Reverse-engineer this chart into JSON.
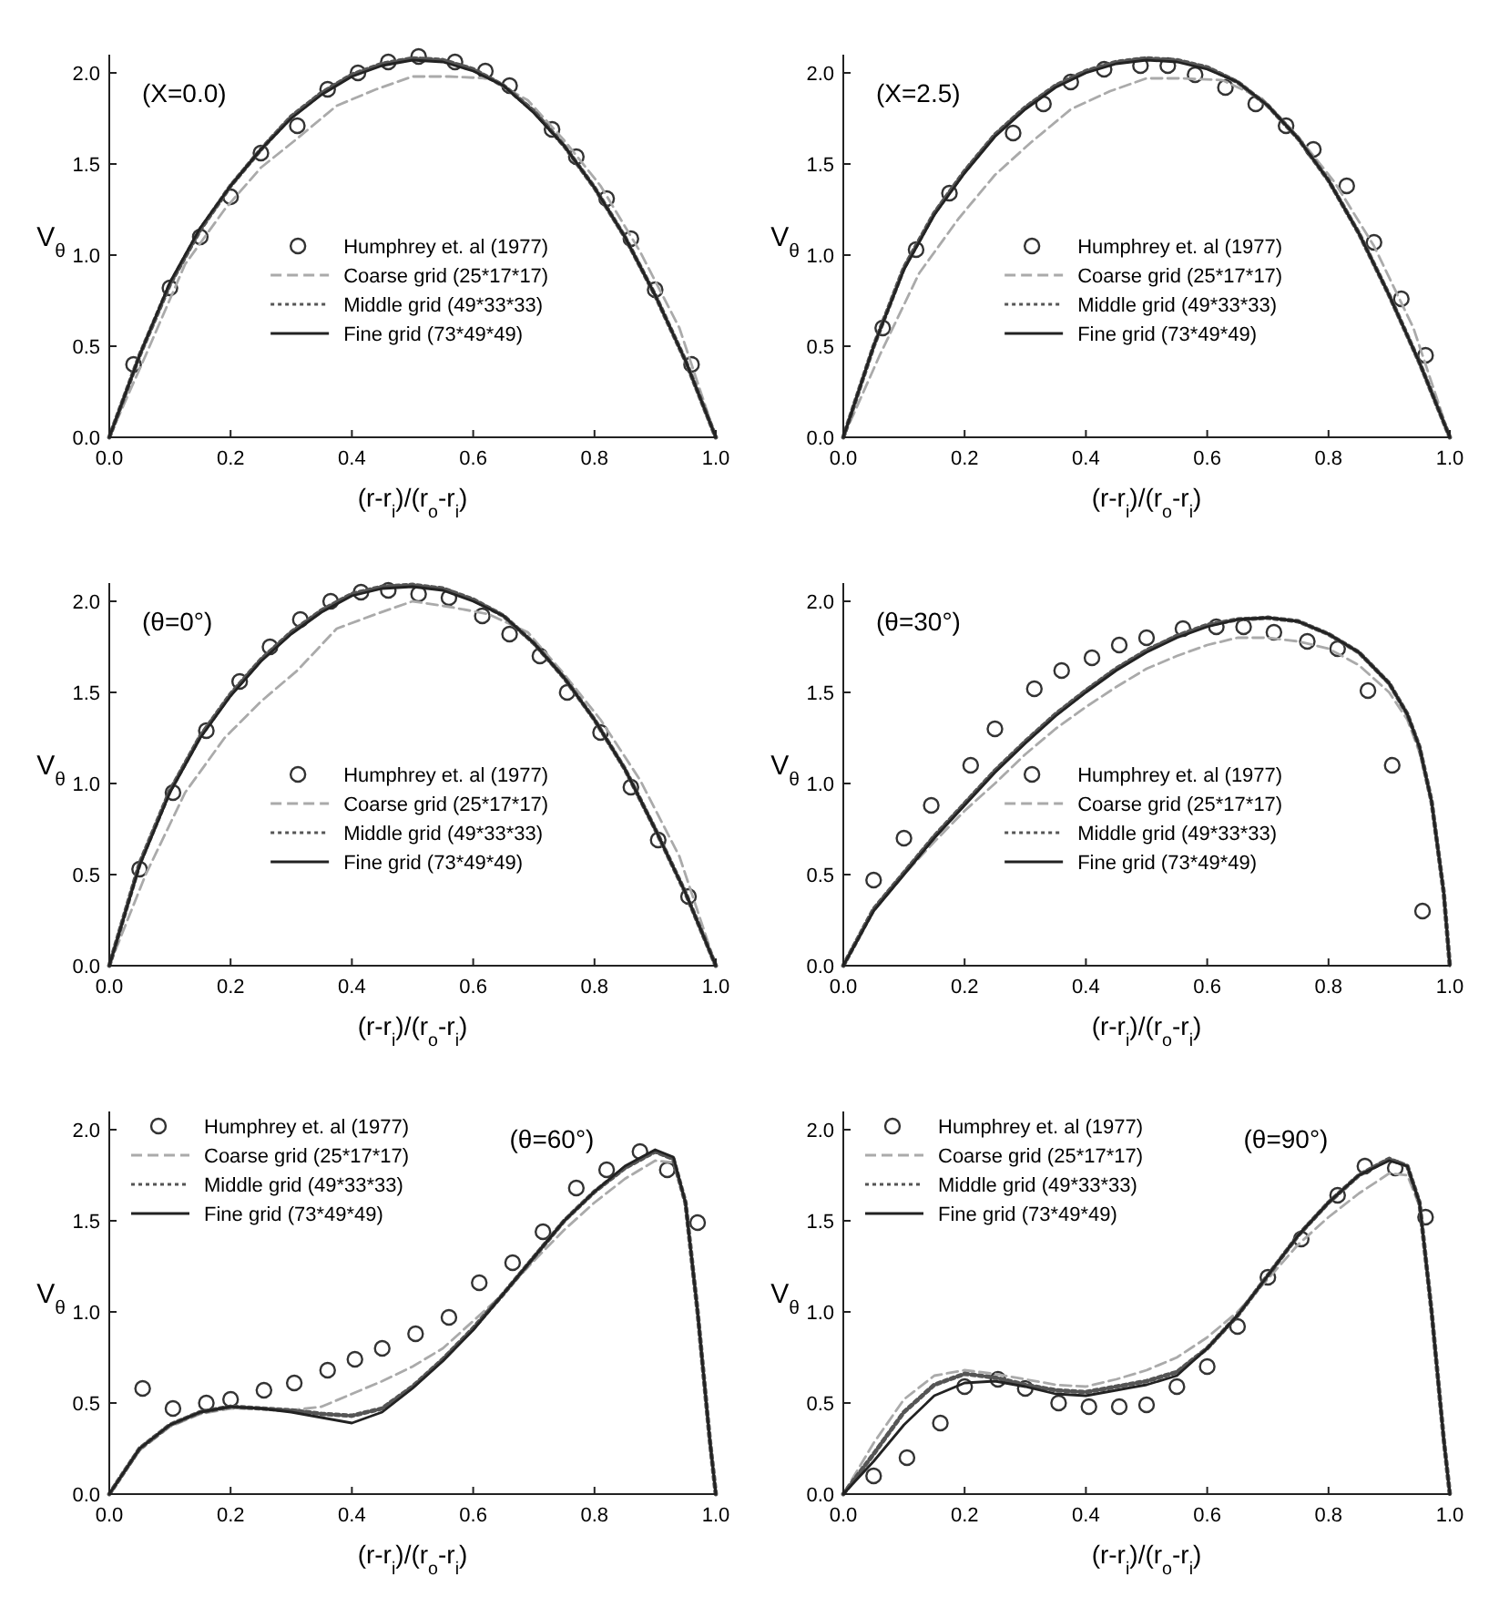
{
  "chart_data": [
    {
      "type": "line",
      "annotations": [
        "(X=0.0)"
      ],
      "xlabel": "(r-r$_{i}$)/(r$_{o}$-r$_{i}$)",
      "ylabel": "V$_{θ}$",
      "xlim": [
        0,
        1
      ],
      "ylim": [
        0,
        2.1
      ],
      "xticks": [
        {
          "value": 0,
          "label": "0.0"
        },
        {
          "value": 0.2,
          "label": "0.2"
        },
        {
          "value": 0.4,
          "label": "0.4"
        },
        {
          "value": 0.6,
          "label": "0.6"
        },
        {
          "value": 0.8,
          "label": "0.8"
        },
        {
          "value": 1,
          "label": "1.0"
        }
      ],
      "yticks": [
        {
          "value": 0,
          "label": "0.0"
        },
        {
          "value": 0.5,
          "label": "0.5"
        },
        {
          "value": 1,
          "label": "1.0"
        },
        {
          "value": 1.5,
          "label": "1.5"
        },
        {
          "value": 2,
          "label": "2.0"
        }
      ],
      "legend": "bottom",
      "series": [
        {
          "name": "Humphrey et. al (1977)",
          "type": "scatter",
          "marker": "circle",
          "color": "#333333",
          "x": [
            0.04,
            0.1,
            0.15,
            0.2,
            0.25,
            0.31,
            0.36,
            0.41,
            0.46,
            0.51,
            0.57,
            0.62,
            0.66,
            0.73,
            0.77,
            0.82,
            0.86,
            0.9,
            0.96
          ],
          "values": [
            0.4,
            0.82,
            1.1,
            1.32,
            1.56,
            1.71,
            1.91,
            2.0,
            2.06,
            2.09,
            2.06,
            2.01,
            1.93,
            1.69,
            1.54,
            1.31,
            1.09,
            0.81,
            0.4
          ]
        },
        {
          "name": "Coarse grid (25*17*17)",
          "line_style": "dashed",
          "color": "#aaaaaa",
          "x": [
            0,
            0.06,
            0.125,
            0.19,
            0.25,
            0.31,
            0.375,
            0.44,
            0.5,
            0.56,
            0.625,
            0.69,
            0.75,
            0.81,
            0.875,
            0.94,
            1.0
          ],
          "values": [
            0,
            0.45,
            0.95,
            1.25,
            1.48,
            1.64,
            1.82,
            1.91,
            1.98,
            1.98,
            1.97,
            1.85,
            1.63,
            1.38,
            1.02,
            0.6,
            0
          ]
        },
        {
          "name": "Middle grid (49*33*33)",
          "line_style": "dotted",
          "color": "#555555",
          "x": [
            0,
            0.05,
            0.1,
            0.15,
            0.2,
            0.25,
            0.3,
            0.35,
            0.4,
            0.45,
            0.5,
            0.55,
            0.6,
            0.65,
            0.7,
            0.75,
            0.8,
            0.85,
            0.9,
            0.95,
            1.0
          ],
          "values": [
            0,
            0.45,
            0.84,
            1.14,
            1.38,
            1.58,
            1.76,
            1.89,
            1.99,
            2.05,
            2.08,
            2.07,
            2.02,
            1.93,
            1.79,
            1.6,
            1.37,
            1.1,
            0.78,
            0.42,
            0
          ]
        },
        {
          "name": "Fine grid (73*49*49)",
          "line_style": "solid",
          "color": "#222222",
          "x": [
            0,
            0.05,
            0.1,
            0.15,
            0.2,
            0.25,
            0.3,
            0.35,
            0.4,
            0.45,
            0.5,
            0.55,
            0.6,
            0.65,
            0.7,
            0.75,
            0.8,
            0.85,
            0.9,
            0.95,
            1.0
          ],
          "values": [
            0,
            0.45,
            0.85,
            1.15,
            1.38,
            1.58,
            1.75,
            1.88,
            1.98,
            2.04,
            2.07,
            2.06,
            2.01,
            1.93,
            1.78,
            1.6,
            1.37,
            1.1,
            0.78,
            0.42,
            0
          ]
        }
      ]
    },
    {
      "type": "line",
      "annotations": [
        "(X=2.5)"
      ],
      "xlabel": "(r-r$_{i}$)/(r$_{o}$-r$_{i}$)",
      "ylabel": "V$_{θ}$",
      "xlim": [
        0,
        1
      ],
      "ylim": [
        0,
        2.1
      ],
      "xticks": [
        {
          "value": 0,
          "label": "0.0"
        },
        {
          "value": 0.2,
          "label": "0.2"
        },
        {
          "value": 0.4,
          "label": "0.4"
        },
        {
          "value": 0.6,
          "label": "0.6"
        },
        {
          "value": 0.8,
          "label": "0.8"
        },
        {
          "value": 1,
          "label": "1.0"
        }
      ],
      "yticks": [
        {
          "value": 0,
          "label": "0.0"
        },
        {
          "value": 0.5,
          "label": "0.5"
        },
        {
          "value": 1,
          "label": "1.0"
        },
        {
          "value": 1.5,
          "label": "1.5"
        },
        {
          "value": 2,
          "label": "2.0"
        }
      ],
      "legend": "bottom",
      "series": [
        {
          "name": "Humphrey et. al (1977)",
          "type": "scatter",
          "marker": "circle",
          "color": "#333333",
          "x": [
            0.065,
            0.12,
            0.175,
            0.28,
            0.33,
            0.375,
            0.43,
            0.49,
            0.535,
            0.58,
            0.63,
            0.68,
            0.73,
            0.775,
            0.83,
            0.875,
            0.92,
            0.96
          ],
          "values": [
            0.6,
            1.03,
            1.34,
            1.67,
            1.83,
            1.95,
            2.02,
            2.04,
            2.04,
            1.99,
            1.92,
            1.83,
            1.71,
            1.58,
            1.38,
            1.07,
            0.76,
            0.45
          ]
        },
        {
          "name": "Coarse grid (25*17*17)",
          "line_style": "dashed",
          "color": "#aaaaaa",
          "x": [
            0,
            0.06,
            0.125,
            0.19,
            0.25,
            0.31,
            0.375,
            0.44,
            0.5,
            0.56,
            0.625,
            0.69,
            0.75,
            0.81,
            0.875,
            0.94,
            1.0
          ],
          "values": [
            0,
            0.45,
            0.9,
            1.2,
            1.44,
            1.62,
            1.8,
            1.9,
            1.97,
            1.97,
            1.96,
            1.86,
            1.65,
            1.4,
            1.05,
            0.6,
            0
          ]
        },
        {
          "name": "Middle grid (49*33*33)",
          "line_style": "dotted",
          "color": "#555555",
          "x": [
            0,
            0.05,
            0.1,
            0.15,
            0.2,
            0.25,
            0.3,
            0.35,
            0.4,
            0.45,
            0.5,
            0.55,
            0.6,
            0.65,
            0.7,
            0.75,
            0.8,
            0.85,
            0.9,
            0.95,
            1.0
          ],
          "values": [
            0,
            0.5,
            0.93,
            1.23,
            1.46,
            1.66,
            1.81,
            1.93,
            2.01,
            2.06,
            2.08,
            2.07,
            2.03,
            1.95,
            1.82,
            1.64,
            1.41,
            1.12,
            0.78,
            0.41,
            0
          ]
        },
        {
          "name": "Fine grid (73*49*49)",
          "line_style": "solid",
          "color": "#222222",
          "x": [
            0,
            0.05,
            0.1,
            0.15,
            0.2,
            0.25,
            0.3,
            0.35,
            0.4,
            0.45,
            0.5,
            0.55,
            0.6,
            0.65,
            0.7,
            0.75,
            0.8,
            0.85,
            0.9,
            0.95,
            1.0
          ],
          "values": [
            0,
            0.5,
            0.92,
            1.22,
            1.45,
            1.65,
            1.8,
            1.92,
            2.0,
            2.05,
            2.07,
            2.06,
            2.02,
            1.95,
            1.82,
            1.64,
            1.41,
            1.12,
            0.78,
            0.41,
            0
          ]
        }
      ]
    },
    {
      "type": "line",
      "annotations": [
        "(θ=0°)"
      ],
      "xlabel": "(r-r$_{i}$)/(r$_{o}$-r$_{i}$)",
      "ylabel": "V$_{θ}$",
      "xlim": [
        0,
        1
      ],
      "ylim": [
        0,
        2.1
      ],
      "xticks": [
        {
          "value": 0,
          "label": "0.0"
        },
        {
          "value": 0.2,
          "label": "0.2"
        },
        {
          "value": 0.4,
          "label": "0.4"
        },
        {
          "value": 0.6,
          "label": "0.6"
        },
        {
          "value": 0.8,
          "label": "0.8"
        },
        {
          "value": 1,
          "label": "1.0"
        }
      ],
      "yticks": [
        {
          "value": 0,
          "label": "0.0"
        },
        {
          "value": 0.5,
          "label": "0.5"
        },
        {
          "value": 1,
          "label": "1.0"
        },
        {
          "value": 1.5,
          "label": "1.5"
        },
        {
          "value": 2,
          "label": "2.0"
        }
      ],
      "legend": "bottom",
      "series": [
        {
          "name": "Humphrey et. al (1977)",
          "type": "scatter",
          "marker": "circle",
          "color": "#333333",
          "x": [
            0.05,
            0.105,
            0.16,
            0.215,
            0.265,
            0.315,
            0.365,
            0.415,
            0.46,
            0.51,
            0.56,
            0.615,
            0.66,
            0.71,
            0.755,
            0.81,
            0.86,
            0.905,
            0.955
          ],
          "values": [
            0.53,
            0.95,
            1.29,
            1.56,
            1.75,
            1.9,
            2.0,
            2.05,
            2.06,
            2.04,
            2.02,
            1.92,
            1.82,
            1.7,
            1.5,
            1.28,
            0.98,
            0.69,
            0.38
          ]
        },
        {
          "name": "Coarse grid (25*17*17)",
          "line_style": "dashed",
          "color": "#aaaaaa",
          "x": [
            0,
            0.06,
            0.125,
            0.19,
            0.25,
            0.31,
            0.375,
            0.44,
            0.5,
            0.56,
            0.625,
            0.69,
            0.75,
            0.81,
            0.875,
            0.94,
            1.0
          ],
          "values": [
            0,
            0.5,
            0.95,
            1.25,
            1.45,
            1.62,
            1.85,
            1.93,
            2.0,
            1.97,
            1.93,
            1.83,
            1.6,
            1.35,
            1.02,
            0.6,
            0
          ]
        },
        {
          "name": "Middle grid (49*33*33)",
          "line_style": "dotted",
          "color": "#555555",
          "x": [
            0,
            0.05,
            0.1,
            0.15,
            0.2,
            0.25,
            0.3,
            0.35,
            0.4,
            0.45,
            0.5,
            0.55,
            0.6,
            0.65,
            0.7,
            0.75,
            0.8,
            0.85,
            0.9,
            0.95,
            1.0
          ],
          "values": [
            0,
            0.56,
            0.96,
            1.26,
            1.49,
            1.68,
            1.83,
            1.95,
            2.04,
            2.08,
            2.09,
            2.07,
            2.01,
            1.92,
            1.77,
            1.58,
            1.35,
            1.08,
            0.75,
            0.4,
            0
          ]
        },
        {
          "name": "Fine grid (73*49*49)",
          "line_style": "solid",
          "color": "#222222",
          "x": [
            0,
            0.05,
            0.1,
            0.15,
            0.2,
            0.25,
            0.3,
            0.35,
            0.4,
            0.45,
            0.5,
            0.55,
            0.6,
            0.65,
            0.7,
            0.75,
            0.8,
            0.85,
            0.9,
            0.95,
            1.0
          ],
          "values": [
            0,
            0.55,
            0.95,
            1.25,
            1.48,
            1.67,
            1.82,
            1.94,
            2.03,
            2.07,
            2.08,
            2.06,
            2.0,
            1.92,
            1.77,
            1.58,
            1.35,
            1.08,
            0.75,
            0.4,
            0
          ]
        }
      ]
    },
    {
      "type": "line",
      "annotations": [
        "(θ=30°)"
      ],
      "xlabel": "(r-r$_{i}$)/(r$_{o}$-r$_{i}$)",
      "ylabel": "V$_{θ}$",
      "xlim": [
        0,
        1
      ],
      "ylim": [
        0,
        2.1
      ],
      "xticks": [
        {
          "value": 0,
          "label": "0.0"
        },
        {
          "value": 0.2,
          "label": "0.2"
        },
        {
          "value": 0.4,
          "label": "0.4"
        },
        {
          "value": 0.6,
          "label": "0.6"
        },
        {
          "value": 0.8,
          "label": "0.8"
        },
        {
          "value": 1,
          "label": "1.0"
        }
      ],
      "yticks": [
        {
          "value": 0,
          "label": "0.0"
        },
        {
          "value": 0.5,
          "label": "0.5"
        },
        {
          "value": 1,
          "label": "1.0"
        },
        {
          "value": 1.5,
          "label": "1.5"
        },
        {
          "value": 2,
          "label": "2.0"
        }
      ],
      "legend": "bottom",
      "series": [
        {
          "name": "Humphrey et. al (1977)",
          "type": "scatter",
          "marker": "circle",
          "color": "#333333",
          "x": [
            0.05,
            0.1,
            0.145,
            0.21,
            0.25,
            0.315,
            0.36,
            0.41,
            0.455,
            0.5,
            0.56,
            0.615,
            0.66,
            0.71,
            0.765,
            0.815,
            0.865,
            0.905,
            0.955
          ],
          "values": [
            0.47,
            0.7,
            0.88,
            1.1,
            1.3,
            1.52,
            1.62,
            1.69,
            1.76,
            1.8,
            1.85,
            1.86,
            1.86,
            1.83,
            1.78,
            1.74,
            1.51,
            1.1,
            0.3
          ]
        },
        {
          "name": "Coarse grid (25*17*17)",
          "line_style": "dashed",
          "color": "#aaaaaa",
          "x": [
            0,
            0.05,
            0.1,
            0.15,
            0.2,
            0.25,
            0.3,
            0.35,
            0.4,
            0.45,
            0.5,
            0.55,
            0.6,
            0.65,
            0.7,
            0.75,
            0.8,
            0.85,
            0.9,
            0.93,
            0.95,
            0.97,
            0.99,
            1.0
          ],
          "values": [
            0,
            0.3,
            0.5,
            0.68,
            0.85,
            1.0,
            1.16,
            1.3,
            1.42,
            1.53,
            1.63,
            1.7,
            1.76,
            1.8,
            1.8,
            1.78,
            1.74,
            1.65,
            1.5,
            1.35,
            1.17,
            0.9,
            0.4,
            0
          ]
        },
        {
          "name": "Middle grid (49*33*33)",
          "line_style": "dotted",
          "color": "#555555",
          "x": [
            0,
            0.05,
            0.1,
            0.15,
            0.2,
            0.25,
            0.3,
            0.35,
            0.4,
            0.45,
            0.5,
            0.55,
            0.6,
            0.65,
            0.7,
            0.75,
            0.8,
            0.85,
            0.9,
            0.93,
            0.95,
            0.97,
            0.99,
            1.0
          ],
          "values": [
            0,
            0.31,
            0.51,
            0.71,
            0.89,
            1.07,
            1.23,
            1.38,
            1.51,
            1.63,
            1.73,
            1.81,
            1.87,
            1.9,
            1.91,
            1.89,
            1.82,
            1.72,
            1.55,
            1.38,
            1.2,
            0.9,
            0.4,
            0
          ]
        },
        {
          "name": "Fine grid (73*49*49)",
          "line_style": "solid",
          "color": "#222222",
          "x": [
            0,
            0.05,
            0.1,
            0.15,
            0.2,
            0.25,
            0.3,
            0.35,
            0.4,
            0.45,
            0.5,
            0.55,
            0.6,
            0.65,
            0.7,
            0.75,
            0.8,
            0.85,
            0.9,
            0.93,
            0.95,
            0.97,
            0.99,
            1.0
          ],
          "values": [
            0,
            0.3,
            0.5,
            0.7,
            0.88,
            1.06,
            1.22,
            1.37,
            1.5,
            1.62,
            1.72,
            1.8,
            1.86,
            1.9,
            1.91,
            1.89,
            1.82,
            1.72,
            1.55,
            1.38,
            1.2,
            0.9,
            0.4,
            0
          ]
        }
      ]
    },
    {
      "type": "line",
      "annotations": [
        "(θ=60°)"
      ],
      "xlabel": "(r-r$_{i}$)/(r$_{o}$-r$_{i}$)",
      "ylabel": "V$_{θ}$",
      "xlim": [
        0,
        1
      ],
      "ylim": [
        0,
        2.1
      ],
      "xticks": [
        {
          "value": 0,
          "label": "0.0"
        },
        {
          "value": 0.2,
          "label": "0.2"
        },
        {
          "value": 0.4,
          "label": "0.4"
        },
        {
          "value": 0.6,
          "label": "0.6"
        },
        {
          "value": 0.8,
          "label": "0.8"
        },
        {
          "value": 1,
          "label": "1.0"
        }
      ],
      "yticks": [
        {
          "value": 0,
          "label": "0.0"
        },
        {
          "value": 0.5,
          "label": "0.5"
        },
        {
          "value": 1,
          "label": "1.0"
        },
        {
          "value": 1.5,
          "label": "1.5"
        },
        {
          "value": 2,
          "label": "2.0"
        }
      ],
      "legend": "top left",
      "series": [
        {
          "name": "Humphrey et. al (1977)",
          "type": "scatter",
          "marker": "circle",
          "color": "#333333",
          "x": [
            0.055,
            0.105,
            0.16,
            0.2,
            0.255,
            0.305,
            0.36,
            0.405,
            0.45,
            0.505,
            0.56,
            0.61,
            0.665,
            0.715,
            0.77,
            0.82,
            0.875,
            0.92,
            0.97
          ],
          "values": [
            0.58,
            0.47,
            0.5,
            0.52,
            0.57,
            0.61,
            0.68,
            0.74,
            0.8,
            0.88,
            0.97,
            1.16,
            1.27,
            1.44,
            1.68,
            1.78,
            1.88,
            1.78,
            1.49
          ]
        },
        {
          "name": "Coarse grid (25*17*17)",
          "line_style": "dashed",
          "color": "#aaaaaa",
          "x": [
            0,
            0.05,
            0.1,
            0.15,
            0.2,
            0.25,
            0.3,
            0.35,
            0.4,
            0.45,
            0.5,
            0.55,
            0.6,
            0.65,
            0.7,
            0.75,
            0.8,
            0.85,
            0.9,
            0.93,
            0.95,
            0.97,
            0.99,
            1.0
          ],
          "values": [
            0,
            0.24,
            0.37,
            0.44,
            0.47,
            0.47,
            0.46,
            0.48,
            0.55,
            0.62,
            0.7,
            0.8,
            0.95,
            1.1,
            1.28,
            1.45,
            1.6,
            1.73,
            1.83,
            1.82,
            1.6,
            1.0,
            0.3,
            0
          ]
        },
        {
          "name": "Middle grid (49*33*33)",
          "line_style": "dotted",
          "color": "#555555",
          "x": [
            0,
            0.05,
            0.1,
            0.15,
            0.2,
            0.25,
            0.3,
            0.35,
            0.4,
            0.45,
            0.5,
            0.55,
            0.6,
            0.65,
            0.7,
            0.75,
            0.8,
            0.85,
            0.9,
            0.93,
            0.95,
            0.97,
            0.99,
            1.0
          ],
          "values": [
            0,
            0.25,
            0.38,
            0.45,
            0.48,
            0.47,
            0.46,
            0.44,
            0.43,
            0.47,
            0.59,
            0.74,
            0.91,
            1.1,
            1.3,
            1.5,
            1.66,
            1.79,
            1.88,
            1.84,
            1.6,
            1.0,
            0.3,
            0
          ]
        },
        {
          "name": "Fine grid (73*49*49)",
          "line_style": "solid",
          "color": "#222222",
          "x": [
            0,
            0.05,
            0.1,
            0.15,
            0.2,
            0.25,
            0.3,
            0.35,
            0.4,
            0.45,
            0.5,
            0.55,
            0.6,
            0.65,
            0.7,
            0.75,
            0.8,
            0.85,
            0.9,
            0.93,
            0.95,
            0.97,
            0.99,
            1.0
          ],
          "values": [
            0,
            0.25,
            0.38,
            0.45,
            0.48,
            0.47,
            0.45,
            0.42,
            0.39,
            0.45,
            0.58,
            0.73,
            0.9,
            1.1,
            1.3,
            1.5,
            1.66,
            1.8,
            1.89,
            1.85,
            1.6,
            1.0,
            0.3,
            0
          ]
        }
      ]
    },
    {
      "type": "line",
      "annotations": [
        "(θ=90°)"
      ],
      "xlabel": "(r-r$_{i}$)/(r$_{o}$-r$_{i}$)",
      "ylabel": "V$_{θ}$",
      "xlim": [
        0,
        1
      ],
      "ylim": [
        0,
        2.1
      ],
      "xticks": [
        {
          "value": 0,
          "label": "0.0"
        },
        {
          "value": 0.2,
          "label": "0.2"
        },
        {
          "value": 0.4,
          "label": "0.4"
        },
        {
          "value": 0.6,
          "label": "0.6"
        },
        {
          "value": 0.8,
          "label": "0.8"
        },
        {
          "value": 1,
          "label": "1.0"
        }
      ],
      "yticks": [
        {
          "value": 0,
          "label": "0.0"
        },
        {
          "value": 0.5,
          "label": "0.5"
        },
        {
          "value": 1,
          "label": "1.0"
        },
        {
          "value": 1.5,
          "label": "1.5"
        },
        {
          "value": 2,
          "label": "2.0"
        }
      ],
      "legend": "top left",
      "series": [
        {
          "name": "Humphrey et. al (1977)",
          "type": "scatter",
          "marker": "circle",
          "color": "#333333",
          "x": [
            0.05,
            0.105,
            0.16,
            0.2,
            0.255,
            0.3,
            0.355,
            0.405,
            0.455,
            0.5,
            0.55,
            0.6,
            0.65,
            0.7,
            0.755,
            0.815,
            0.86,
            0.91,
            0.96
          ],
          "values": [
            0.1,
            0.2,
            0.39,
            0.59,
            0.63,
            0.58,
            0.5,
            0.48,
            0.48,
            0.49,
            0.59,
            0.7,
            0.92,
            1.19,
            1.4,
            1.64,
            1.8,
            1.79,
            1.52
          ]
        },
        {
          "name": "Coarse grid (25*17*17)",
          "line_style": "dashed",
          "color": "#aaaaaa",
          "x": [
            0,
            0.05,
            0.1,
            0.15,
            0.2,
            0.25,
            0.3,
            0.35,
            0.4,
            0.45,
            0.5,
            0.55,
            0.6,
            0.65,
            0.7,
            0.75,
            0.8,
            0.85,
            0.9,
            0.93,
            0.95,
            0.97,
            0.99,
            1.0
          ],
          "values": [
            0,
            0.28,
            0.52,
            0.65,
            0.68,
            0.66,
            0.63,
            0.6,
            0.59,
            0.63,
            0.68,
            0.75,
            0.86,
            1.0,
            1.18,
            1.37,
            1.52,
            1.65,
            1.76,
            1.75,
            1.58,
            1.0,
            0.3,
            0
          ]
        },
        {
          "name": "Middle grid (49*33*33)",
          "line_style": "dotted",
          "color": "#555555",
          "x": [
            0,
            0.05,
            0.1,
            0.15,
            0.2,
            0.25,
            0.3,
            0.35,
            0.4,
            0.45,
            0.5,
            0.55,
            0.6,
            0.65,
            0.7,
            0.75,
            0.8,
            0.85,
            0.9,
            0.93,
            0.95,
            0.97,
            0.99,
            1.0
          ],
          "values": [
            0,
            0.22,
            0.45,
            0.6,
            0.66,
            0.64,
            0.6,
            0.57,
            0.56,
            0.59,
            0.62,
            0.67,
            0.8,
            0.98,
            1.2,
            1.42,
            1.6,
            1.75,
            1.84,
            1.8,
            1.6,
            1.0,
            0.3,
            0
          ]
        },
        {
          "name": "Fine grid (73*49*49)",
          "line_style": "solid",
          "color": "#222222",
          "x": [
            0,
            0.05,
            0.1,
            0.15,
            0.2,
            0.25,
            0.3,
            0.35,
            0.4,
            0.45,
            0.5,
            0.55,
            0.6,
            0.65,
            0.7,
            0.75,
            0.8,
            0.85,
            0.9,
            0.93,
            0.95,
            0.97,
            0.99,
            1.0
          ],
          "values": [
            0,
            0.18,
            0.38,
            0.54,
            0.61,
            0.62,
            0.59,
            0.55,
            0.54,
            0.57,
            0.6,
            0.65,
            0.8,
            0.98,
            1.2,
            1.42,
            1.6,
            1.75,
            1.83,
            1.8,
            1.6,
            1.0,
            0.3,
            0
          ]
        }
      ]
    }
  ]
}
